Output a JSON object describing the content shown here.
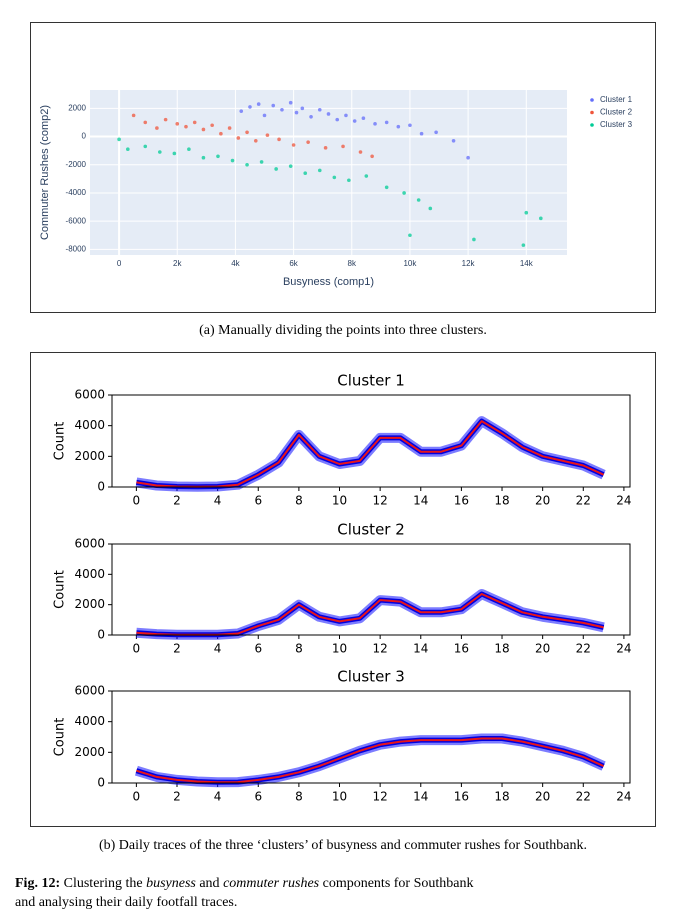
{
  "chart_data": [
    {
      "type": "scatter",
      "xlabel": "Busyness (comp1)",
      "ylabel": "Commuter Rushes (comp2)",
      "xlim": [
        -1000,
        15400
      ],
      "ylim": [
        -8400,
        3300
      ],
      "xticks": [
        0,
        {
          "value": 2000,
          "label": "2k"
        },
        {
          "value": 4000,
          "label": "4k"
        },
        {
          "value": 6000,
          "label": "6k"
        },
        {
          "value": 8000,
          "label": "8k"
        },
        {
          "value": 10000,
          "label": "10k"
        },
        {
          "value": 12000,
          "label": "12k"
        },
        {
          "value": 14000,
          "label": "14k"
        }
      ],
      "yticks": [
        2000,
        0,
        -2000,
        -4000,
        -6000,
        -8000
      ],
      "grid": true,
      "legend": "right",
      "series": [
        {
          "name": "Cluster 1",
          "color": "#636efa",
          "x": [
            4200,
            4500,
            4800,
            5000,
            5300,
            5600,
            5900,
            6100,
            6300,
            6600,
            6900,
            7200,
            7500,
            7800,
            8100,
            8400,
            8800,
            9200,
            9600,
            10000,
            10400,
            10900,
            11500,
            12000
          ],
          "y": [
            1800,
            2100,
            2300,
            1500,
            2200,
            1900,
            2400,
            1700,
            2000,
            1400,
            1900,
            1600,
            1200,
            1500,
            1100,
            1300,
            900,
            1000,
            700,
            800,
            200,
            300,
            -300,
            -1500
          ]
        },
        {
          "name": "Cluster 2",
          "color": "#ef553b",
          "x": [
            500,
            900,
            1300,
            1600,
            2000,
            2300,
            2600,
            2900,
            3200,
            3500,
            3800,
            4100,
            4400,
            4700,
            5100,
            5500,
            6000,
            6500,
            7100,
            7700,
            8300,
            8700
          ],
          "y": [
            1500,
            1000,
            600,
            1200,
            900,
            700,
            1000,
            500,
            800,
            200,
            600,
            -100,
            300,
            -300,
            100,
            -200,
            -600,
            -400,
            -800,
            -700,
            -1100,
            -1400
          ]
        },
        {
          "name": "Cluster 3",
          "color": "#00cc96",
          "x": [
            0,
            300,
            900,
            1400,
            1900,
            2400,
            2900,
            3400,
            3900,
            4400,
            4900,
            5400,
            5900,
            6400,
            6900,
            7400,
            7900,
            8500,
            9200,
            9800,
            10300,
            10700,
            10000,
            12200,
            13900,
            14000,
            14500
          ],
          "y": [
            -200,
            -900,
            -700,
            -1100,
            -1200,
            -900,
            -1500,
            -1400,
            -1700,
            -2000,
            -1800,
            -2300,
            -2100,
            -2600,
            -2400,
            -2900,
            -3100,
            -2800,
            -3600,
            -4000,
            -4500,
            -5100,
            -7000,
            -7300,
            -7700,
            -5400,
            -5800
          ]
        }
      ]
    },
    {
      "type": "line",
      "title": "Cluster 1",
      "ylabel": "Count",
      "xlim": [
        -1.2,
        24.3
      ],
      "ylim": [
        0,
        6000
      ],
      "xticks": [
        0,
        2,
        4,
        6,
        8,
        10,
        12,
        14,
        16,
        18,
        20,
        22,
        24
      ],
      "yticks": [
        0,
        2000,
        4000,
        6000
      ],
      "x": [
        0,
        1,
        2,
        3,
        4,
        5,
        6,
        7,
        8,
        9,
        10,
        11,
        12,
        13,
        14,
        15,
        16,
        17,
        18,
        19,
        20,
        21,
        22,
        23
      ],
      "series": [
        {
          "color": "#e8141b",
          "values": [
            300,
            100,
            30,
            20,
            30,
            150,
            800,
            1600,
            3400,
            2000,
            1500,
            1700,
            3200,
            3200,
            2300,
            2300,
            2700,
            4300,
            3500,
            2600,
            2000,
            1700,
            1400,
            800
          ]
        }
      ]
    },
    {
      "type": "line",
      "title": "Cluster 2",
      "ylabel": "Count",
      "xlim": [
        -1.2,
        24.3
      ],
      "ylim": [
        0,
        6000
      ],
      "xticks": [
        0,
        2,
        4,
        6,
        8,
        10,
        12,
        14,
        16,
        18,
        20,
        22,
        24
      ],
      "yticks": [
        0,
        2000,
        4000,
        6000
      ],
      "x": [
        0,
        1,
        2,
        3,
        4,
        5,
        6,
        7,
        8,
        9,
        10,
        11,
        12,
        13,
        14,
        15,
        16,
        17,
        18,
        19,
        20,
        21,
        22,
        23
      ],
      "series": [
        {
          "color": "#e8141b",
          "values": [
            150,
            60,
            20,
            15,
            20,
            100,
            600,
            1000,
            2000,
            1200,
            900,
            1100,
            2300,
            2200,
            1500,
            1500,
            1700,
            2700,
            2100,
            1500,
            1200,
            1000,
            800,
            500
          ]
        }
      ]
    },
    {
      "type": "line",
      "title": "Cluster 3",
      "ylabel": "Count",
      "xlim": [
        -1.2,
        24.3
      ],
      "ylim": [
        0,
        6000
      ],
      "xticks": [
        0,
        2,
        4,
        6,
        8,
        10,
        12,
        14,
        16,
        18,
        20,
        22,
        24
      ],
      "yticks": [
        0,
        2000,
        4000,
        6000
      ],
      "x": [
        0,
        1,
        2,
        3,
        4,
        5,
        6,
        7,
        8,
        9,
        10,
        11,
        12,
        13,
        14,
        15,
        16,
        17,
        18,
        19,
        20,
        21,
        22,
        23
      ],
      "series": [
        {
          "color": "#e8141b",
          "values": [
            800,
            400,
            200,
            100,
            50,
            60,
            200,
            400,
            700,
            1100,
            1600,
            2100,
            2500,
            2700,
            2800,
            2800,
            2800,
            2900,
            2900,
            2700,
            2400,
            2100,
            1700,
            1100
          ]
        }
      ]
    }
  ],
  "captions": {
    "a": "(a) Manually dividing the points into three clusters.",
    "b": "(b) Daily traces of the three ‘clusters’ of busyness and commuter rushes for Southbank."
  },
  "figure_caption": {
    "label": "Fig. 12",
    "colon": ":",
    "parts": [
      "Clustering the",
      "busyness",
      "and",
      "commuter rushes",
      "components for Southbank"
    ],
    "line2": "and analysing their daily footfall traces."
  }
}
